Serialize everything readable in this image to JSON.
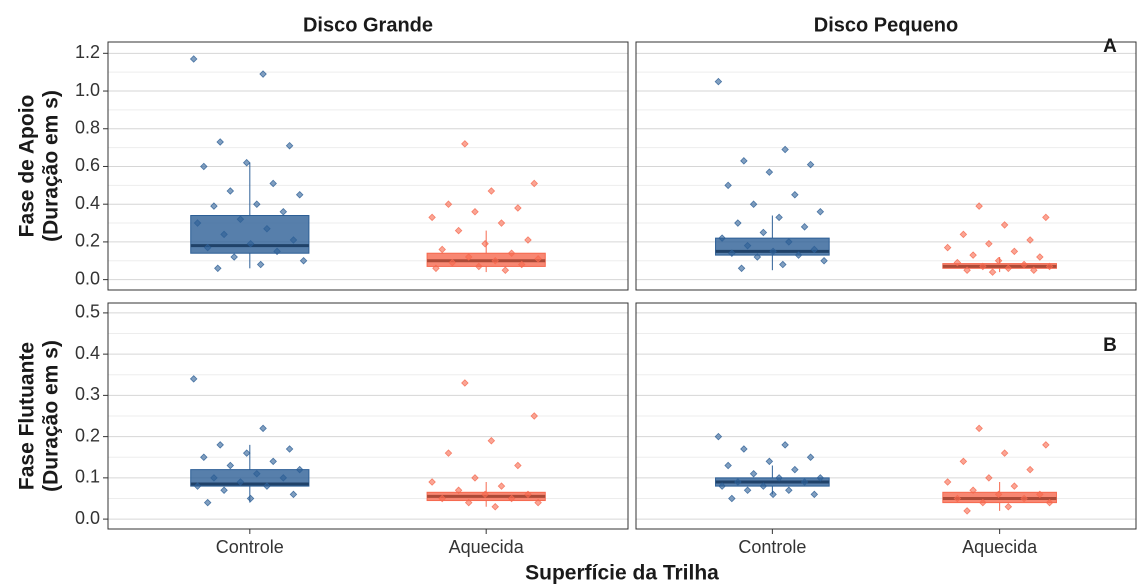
{
  "xlabel": "Superfície da Trilha",
  "chart_data": [
    {
      "type": "box",
      "title": "Disco Grande",
      "ylabel": [
        "Fase de Apoio",
        "(Duração em s)"
      ],
      "ylim": [
        -0.055,
        1.26
      ],
      "yticks": [
        {
          "value": 0,
          "label": "0.0"
        },
        0.2,
        0.4,
        0.6,
        0.8,
        {
          "value": 1,
          "label": "1.0"
        },
        1.2
      ],
      "yminorticks": [
        0.1,
        0.3,
        0.5,
        0.7,
        0.9,
        1.1
      ],
      "grid": true,
      "boxes": [
        {
          "color": "#2d5f96",
          "whisker_low": 0.06,
          "q1": 0.14,
          "median": 0.18,
          "q3": 0.34,
          "whisker_high": 0.62,
          "points": [
            1.17,
            1.09,
            0.73,
            0.71,
            0.62,
            0.6,
            0.51,
            0.47,
            0.45,
            0.4,
            0.39,
            0.36,
            0.32,
            0.3,
            0.27,
            0.24,
            0.21,
            0.19,
            0.17,
            0.15,
            0.12,
            0.1,
            0.08,
            0.06
          ]
        },
        {
          "color": "#f6694f",
          "whisker_low": 0.04,
          "q1": 0.07,
          "median": 0.1,
          "q3": 0.14,
          "whisker_high": 0.26,
          "points": [
            0.72,
            0.51,
            0.47,
            0.4,
            0.38,
            0.36,
            0.33,
            0.3,
            0.26,
            0.21,
            0.19,
            0.16,
            0.14,
            0.12,
            0.11,
            0.1,
            0.09,
            0.08,
            0.07,
            0.06,
            0.05
          ]
        }
      ]
    },
    {
      "type": "box",
      "title": "Disco Pequeno",
      "annotation": "A",
      "ylim": [
        -0.055,
        1.26
      ],
      "yminorticks": [
        0.1,
        0.3,
        0.5,
        0.7,
        0.9,
        1.1
      ],
      "grid": true,
      "ymajorticks": [
        0,
        0.2,
        0.4,
        0.6,
        0.8,
        1,
        1.2
      ],
      "boxes": [
        {
          "color": "#2d5f96",
          "whisker_low": 0.05,
          "q1": 0.13,
          "median": 0.15,
          "q3": 0.22,
          "whisker_high": 0.34,
          "points": [
            1.05,
            0.69,
            0.63,
            0.61,
            0.57,
            0.5,
            0.45,
            0.4,
            0.36,
            0.33,
            0.3,
            0.28,
            0.25,
            0.22,
            0.2,
            0.18,
            0.16,
            0.15,
            0.14,
            0.13,
            0.12,
            0.1,
            0.08,
            0.06
          ]
        },
        {
          "color": "#f6694f",
          "whisker_low": 0.04,
          "q1": 0.06,
          "median": 0.07,
          "q3": 0.085,
          "whisker_high": 0.12,
          "points": [
            0.39,
            0.33,
            0.29,
            0.24,
            0.21,
            0.19,
            0.17,
            0.15,
            0.13,
            0.12,
            0.1,
            0.09,
            0.08,
            0.07,
            0.07,
            0.06,
            0.05,
            0.05,
            0.04
          ]
        }
      ]
    },
    {
      "type": "box",
      "ylabel": [
        "Fase Flutuante",
        "(Duração em s)"
      ],
      "categories": [
        "Controle",
        "Aquecida"
      ],
      "ylim": [
        -0.024,
        0.524
      ],
      "yticks": [
        {
          "value": 0,
          "label": "0.0"
        },
        0.1,
        0.2,
        0.3,
        0.4,
        0.5
      ],
      "yminorticks": [
        0.05,
        0.15,
        0.25,
        0.35,
        0.45
      ],
      "grid": true,
      "boxes": [
        {
          "color": "#2d5f96",
          "whisker_low": 0.04,
          "q1": 0.08,
          "median": 0.085,
          "q3": 0.12,
          "whisker_high": 0.18,
          "points": [
            0.34,
            0.22,
            0.18,
            0.17,
            0.16,
            0.15,
            0.14,
            0.13,
            0.12,
            0.11,
            0.1,
            0.1,
            0.09,
            0.08,
            0.08,
            0.07,
            0.06,
            0.05,
            0.04
          ]
        },
        {
          "color": "#f6694f",
          "whisker_low": 0.03,
          "q1": 0.045,
          "median": 0.055,
          "q3": 0.065,
          "whisker_high": 0.09,
          "points": [
            0.33,
            0.25,
            0.19,
            0.16,
            0.13,
            0.1,
            0.09,
            0.08,
            0.07,
            0.06,
            0.06,
            0.05,
            0.05,
            0.04,
            0.04,
            0.03
          ]
        }
      ]
    },
    {
      "type": "box",
      "annotation": "B",
      "categories": [
        "Controle",
        "Aquecida"
      ],
      "ylim": [
        -0.024,
        0.524
      ],
      "ymajorticks": [
        0,
        0.1,
        0.2,
        0.3,
        0.4,
        0.5
      ],
      "yminorticks": [
        0.05,
        0.15,
        0.25,
        0.35,
        0.45
      ],
      "grid": true,
      "boxes": [
        {
          "color": "#2d5f96",
          "whisker_low": 0.06,
          "q1": 0.08,
          "median": 0.09,
          "q3": 0.1,
          "whisker_high": 0.13,
          "points": [
            0.2,
            0.18,
            0.17,
            0.15,
            0.14,
            0.13,
            0.12,
            0.11,
            0.1,
            0.1,
            0.09,
            0.09,
            0.08,
            0.08,
            0.07,
            0.07,
            0.06,
            0.06,
            0.05
          ]
        },
        {
          "color": "#f6694f",
          "whisker_low": 0.02,
          "q1": 0.04,
          "median": 0.05,
          "q3": 0.065,
          "whisker_high": 0.09,
          "points": [
            0.22,
            0.18,
            0.16,
            0.14,
            0.12,
            0.1,
            0.09,
            0.08,
            0.07,
            0.06,
            0.06,
            0.05,
            0.05,
            0.04,
            0.04,
            0.03,
            0.02
          ]
        }
      ]
    }
  ]
}
